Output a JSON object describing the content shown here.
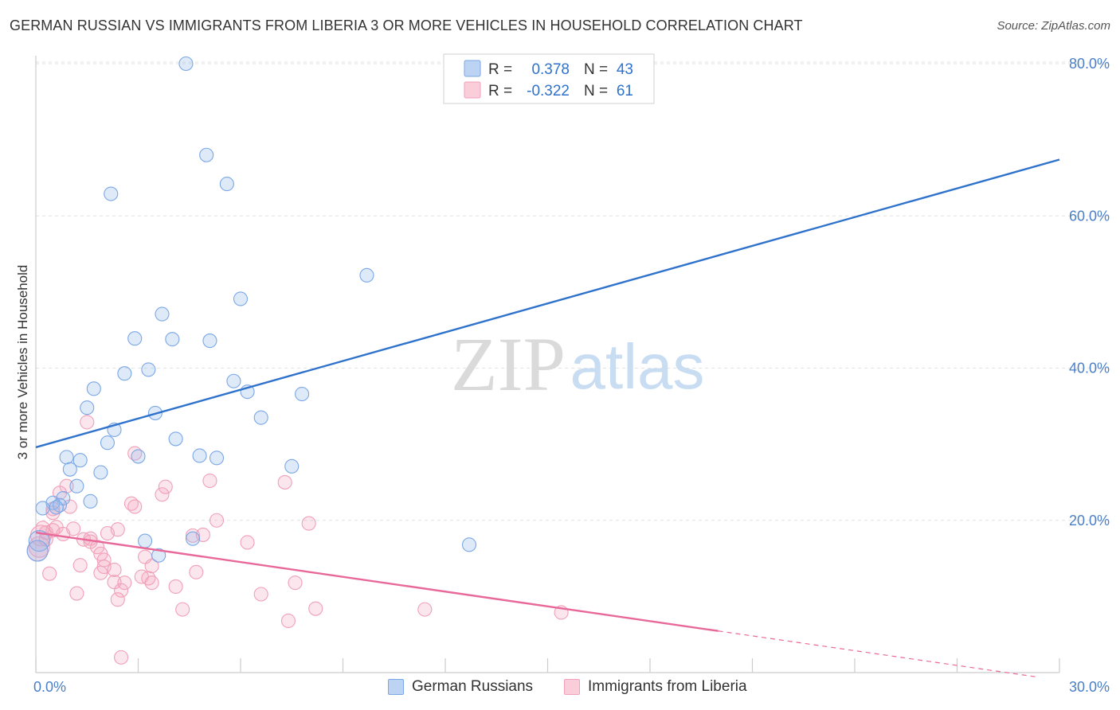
{
  "title": "GERMAN RUSSIAN VS IMMIGRANTS FROM LIBERIA 3 OR MORE VEHICLES IN HOUSEHOLD CORRELATION CHART",
  "source": "Source: ZipAtlas.com",
  "watermark": {
    "zip": "ZIP",
    "atlas": "atlas"
  },
  "chart_data": {
    "type": "scatter",
    "title": "GERMAN RUSSIAN VS IMMIGRANTS FROM LIBERIA 3 OR MORE VEHICLES IN HOUSEHOLD CORRELATION CHART",
    "xlabel": "",
    "ylabel": "3 or more Vehicles in Household",
    "xlim": [
      0,
      30
    ],
    "ylim": [
      0,
      80
    ],
    "x_tick_labels": {
      "min": "0.0%",
      "max": "30.0%"
    },
    "y_ticks": [
      20,
      40,
      60,
      80
    ],
    "y_tick_labels": [
      "20.0%",
      "40.0%",
      "60.0%",
      "80.0%"
    ],
    "grid": true,
    "legend": {
      "position": "top-center",
      "rows": [
        {
          "r_label": "R =",
          "r_value": "0.378",
          "n_label": "N =",
          "n_value": "43"
        },
        {
          "r_label": "R =",
          "r_value": "-0.322",
          "n_label": "N =",
          "n_value": "61"
        }
      ]
    },
    "series": [
      {
        "name": "German Russians",
        "color": "#7aa7e6",
        "line_color": "#2f72cc",
        "R": 0.378,
        "N": 43,
        "trend": {
          "x0": 0,
          "y0": 29.6,
          "x1": 30,
          "y1": 67.4
        },
        "points": [
          [
            4.4,
            80.0
          ],
          [
            5.0,
            68.0
          ],
          [
            5.6,
            64.2
          ],
          [
            2.2,
            62.9
          ],
          [
            9.7,
            52.2
          ],
          [
            6.0,
            49.1
          ],
          [
            3.7,
            47.1
          ],
          [
            2.9,
            43.9
          ],
          [
            4.0,
            43.8
          ],
          [
            5.1,
            43.6
          ],
          [
            2.6,
            39.3
          ],
          [
            3.3,
            39.8
          ],
          [
            5.8,
            38.3
          ],
          [
            1.7,
            37.3
          ],
          [
            6.2,
            36.9
          ],
          [
            7.8,
            36.6
          ],
          [
            1.5,
            34.8
          ],
          [
            3.5,
            34.1
          ],
          [
            6.6,
            33.5
          ],
          [
            2.3,
            31.9
          ],
          [
            2.1,
            30.2
          ],
          [
            4.1,
            30.7
          ],
          [
            0.9,
            28.3
          ],
          [
            3.0,
            28.4
          ],
          [
            4.8,
            28.5
          ],
          [
            5.3,
            28.2
          ],
          [
            1.3,
            27.9
          ],
          [
            1.0,
            26.7
          ],
          [
            1.9,
            26.3
          ],
          [
            7.5,
            27.1
          ],
          [
            1.2,
            24.5
          ],
          [
            0.8,
            22.9
          ],
          [
            1.6,
            22.5
          ],
          [
            0.5,
            22.3
          ],
          [
            0.7,
            22.0
          ],
          [
            0.2,
            21.6
          ],
          [
            0.6,
            21.7
          ],
          [
            3.2,
            17.3
          ],
          [
            4.6,
            17.6
          ],
          [
            12.7,
            16.8
          ],
          [
            3.6,
            15.4
          ],
          [
            0.1,
            17.3
          ],
          [
            0.05,
            16.0
          ]
        ]
      },
      {
        "name": "Immigrants from Liberia",
        "color": "#f0a0b9",
        "line_color": "#e8689a",
        "R": -0.322,
        "N": 61,
        "trend": {
          "x0": 0,
          "y0": 18.4,
          "x1": 30,
          "y1": -1.0,
          "solid_until_x": 20.0
        },
        "points": [
          [
            1.5,
            32.9
          ],
          [
            2.9,
            28.8
          ],
          [
            5.1,
            25.2
          ],
          [
            7.3,
            25.0
          ],
          [
            3.8,
            24.4
          ],
          [
            0.9,
            24.5
          ],
          [
            3.7,
            23.4
          ],
          [
            0.7,
            23.6
          ],
          [
            2.8,
            22.2
          ],
          [
            0.5,
            21.5
          ],
          [
            1.0,
            21.8
          ],
          [
            2.9,
            21.8
          ],
          [
            0.5,
            21.0
          ],
          [
            5.3,
            20.0
          ],
          [
            8.0,
            19.6
          ],
          [
            0.6,
            19.1
          ],
          [
            0.2,
            19.0
          ],
          [
            1.1,
            18.9
          ],
          [
            2.4,
            18.8
          ],
          [
            0.5,
            18.7
          ],
          [
            0.3,
            18.4
          ],
          [
            2.1,
            18.3
          ],
          [
            0.8,
            18.2
          ],
          [
            4.6,
            18.0
          ],
          [
            4.9,
            18.1
          ],
          [
            0.15,
            18.0
          ],
          [
            1.4,
            17.5
          ],
          [
            1.6,
            17.6
          ],
          [
            1.6,
            17.2
          ],
          [
            6.2,
            17.1
          ],
          [
            1.8,
            16.5
          ],
          [
            0.05,
            16.0
          ],
          [
            3.2,
            15.2
          ],
          [
            1.9,
            15.6
          ],
          [
            2.0,
            14.8
          ],
          [
            3.4,
            14.0
          ],
          [
            1.3,
            14.1
          ],
          [
            2.0,
            13.9
          ],
          [
            2.3,
            13.5
          ],
          [
            1.9,
            13.1
          ],
          [
            4.7,
            13.2
          ],
          [
            0.4,
            13.0
          ],
          [
            3.1,
            12.6
          ],
          [
            3.3,
            12.4
          ],
          [
            2.3,
            11.9
          ],
          [
            2.6,
            11.8
          ],
          [
            3.4,
            11.8
          ],
          [
            7.6,
            11.8
          ],
          [
            4.1,
            11.3
          ],
          [
            2.5,
            10.8
          ],
          [
            1.2,
            10.4
          ],
          [
            6.6,
            10.3
          ],
          [
            2.4,
            9.6
          ],
          [
            4.3,
            8.3
          ],
          [
            8.2,
            8.4
          ],
          [
            11.4,
            8.3
          ],
          [
            15.4,
            7.9
          ],
          [
            7.4,
            6.8
          ],
          [
            2.5,
            2.0
          ],
          [
            0.3,
            17.5
          ],
          [
            0.1,
            16.5
          ]
        ]
      }
    ]
  },
  "bottom_legend": [
    {
      "label": "German Russians",
      "fill": "#bcd3f3",
      "stroke": "#7aa7e6"
    },
    {
      "label": "Immigrants from Liberia",
      "fill": "#f9cdda",
      "stroke": "#f0a0b9"
    }
  ]
}
